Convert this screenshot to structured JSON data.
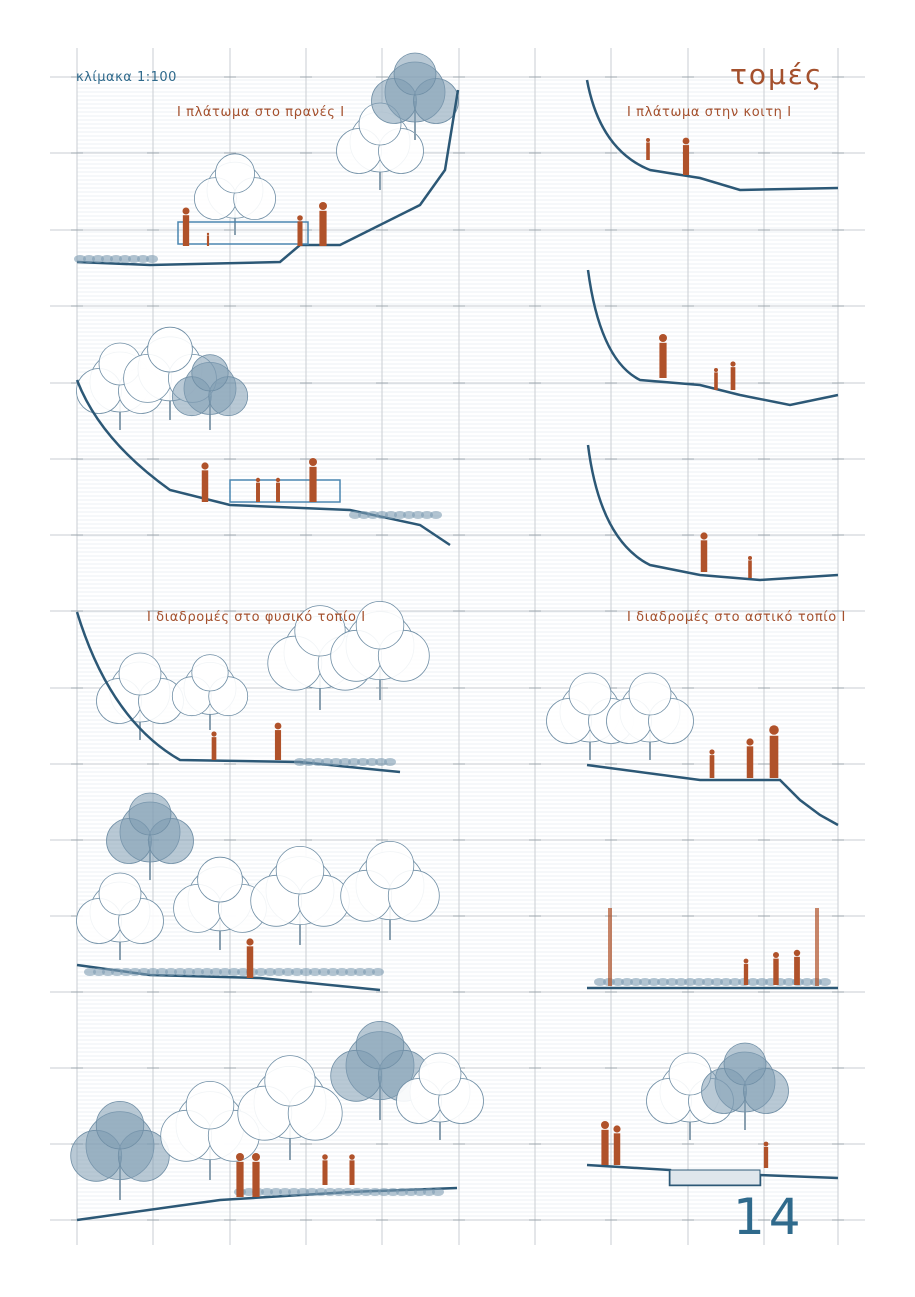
{
  "sheet": {
    "title": "τομές",
    "scale_label": "κλίμακα 1:100",
    "page_number": "14"
  },
  "sections": [
    {
      "title": "I πλάτωμα στο πρανές I"
    },
    {
      "title": "I πλάτωμα στην κοιτη I"
    },
    {
      "title": "I διαδρομές στο φυσικό τοπίο I"
    },
    {
      "title": "I διαδρομές στο αστικό τοπίο I"
    }
  ],
  "colors": {
    "ground": "#2c5876",
    "vegetation": "#b9cbd8",
    "vegetation_dark": "#7f9db3",
    "figures": "#b0522a",
    "grid": "#c9ced3",
    "accent_text": "#a4502d",
    "blue_text": "#2f6a8c"
  }
}
